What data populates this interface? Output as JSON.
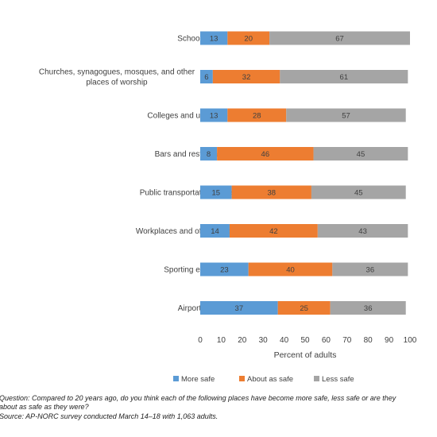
{
  "chart_data": {
    "type": "bar",
    "orientation": "horizontal",
    "stacked": true,
    "categories": [
      "Schools",
      "Churches, synagogues, mosques, and other places of worship",
      "Colleges and universities",
      "Bars and restaurants",
      "Public transportation systems",
      "Workplaces and office buildings",
      "Sporting events",
      "Airports"
    ],
    "series": [
      {
        "name": "More safe",
        "color": "#5b9bd5",
        "values": [
          13,
          6,
          13,
          8,
          15,
          14,
          23,
          37
        ]
      },
      {
        "name": "About as safe",
        "color": "#ed7d31",
        "values": [
          20,
          32,
          28,
          46,
          38,
          42,
          40,
          25
        ]
      },
      {
        "name": "Less safe",
        "color": "#a5a5a5",
        "values": [
          67,
          61,
          57,
          45,
          45,
          43,
          36,
          36
        ]
      }
    ],
    "xlabel": "Percent of adults",
    "xlim": [
      0,
      100
    ],
    "xticks": [
      0,
      10,
      20,
      30,
      40,
      50,
      60,
      70,
      80,
      90,
      100
    ],
    "grid": false,
    "legend": "bottom"
  },
  "notes": {
    "question": "Question: Compared to 20 years ago, do you think each of the following places have become more safe, less safe or are they",
    "question_cont": "about as safe as they were?",
    "source": "Source: AP-NORC survey conducted March 14–18 with 1,063 adults."
  }
}
